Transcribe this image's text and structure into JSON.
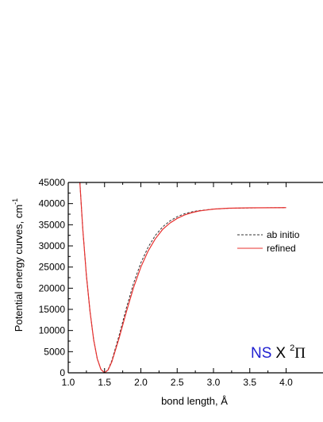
{
  "chart_data": {
    "type": "line",
    "xlabel": "bond length, Å",
    "ylabel_main": "Potential energy curves, cm",
    "ylabel_sup": "-1",
    "xlim": [
      1.0,
      4.0
    ],
    "ylim": [
      0,
      45000
    ],
    "x_ticks": [
      1.0,
      1.5,
      2.0,
      2.5,
      3.0,
      3.5,
      4.0
    ],
    "x_tick_labels": [
      "1.0",
      "1.5",
      "2.0",
      "2.5",
      "3.0",
      "3.5",
      "4.0"
    ],
    "y_ticks": [
      0,
      5000,
      10000,
      15000,
      20000,
      25000,
      30000,
      35000,
      40000,
      45000
    ],
    "y_tick_labels": [
      "0",
      "5000",
      "10000",
      "15000",
      "20000",
      "25000",
      "30000",
      "35000",
      "40000",
      "45000"
    ],
    "legend_position": "right",
    "annotation": {
      "molecule": "NS",
      "state_letter": "X",
      "state_sup": "2",
      "state_symbol": "Π",
      "molecule_color": "#1f1fd0",
      "state_color": "#000000"
    },
    "series": [
      {
        "name": "ab initio",
        "color": "#333333",
        "dash": "3,2",
        "x": [
          1.16,
          1.2,
          1.25,
          1.3,
          1.35,
          1.4,
          1.45,
          1.5,
          1.55,
          1.6,
          1.7,
          1.8,
          1.9,
          2.0,
          2.1,
          2.2,
          2.3,
          2.4,
          2.5,
          2.6,
          2.7,
          2.8,
          3.0,
          3.2,
          3.5,
          3.8,
          4.0
        ],
        "y": [
          45000,
          34000,
          23000,
          14500,
          7800,
          3300,
          800,
          0,
          800,
          2900,
          8800,
          15300,
          21200,
          26000,
          29700,
          32500,
          34500,
          35900,
          36900,
          37600,
          38050,
          38350,
          38700,
          38880,
          38980,
          39020,
          39040
        ]
      },
      {
        "name": "refined",
        "color": "#e8302e",
        "dash": "",
        "x": [
          1.16,
          1.2,
          1.25,
          1.3,
          1.35,
          1.4,
          1.45,
          1.5,
          1.55,
          1.6,
          1.7,
          1.8,
          1.9,
          2.0,
          2.1,
          2.2,
          2.3,
          2.4,
          2.5,
          2.6,
          2.7,
          2.8,
          3.0,
          3.2,
          3.5,
          3.8,
          4.0
        ],
        "y": [
          45000,
          34000,
          23000,
          14500,
          7800,
          3300,
          800,
          0,
          700,
          2600,
          8200,
          14400,
          20200,
          25000,
          28800,
          31700,
          33900,
          35400,
          36500,
          37300,
          37850,
          38250,
          38700,
          38900,
          39000,
          39030,
          39050
        ]
      }
    ]
  }
}
